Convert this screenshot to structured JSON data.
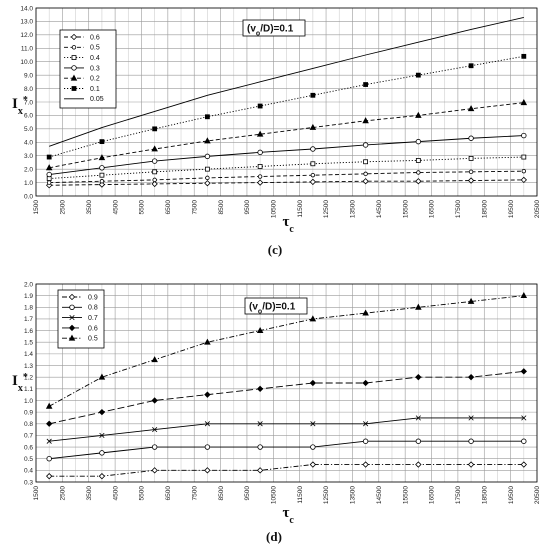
{
  "chart_data": [
    {
      "type": "line",
      "panel": "(c)",
      "annotation": "(v_o/D)=0.1",
      "ylabel": "I_x*",
      "xlabel": "τ_c",
      "xlim": [
        1500,
        20500
      ],
      "ylim": [
        0.0,
        14.0
      ],
      "xticks": [
        1500,
        2500,
        3500,
        4500,
        5500,
        6500,
        7500,
        8500,
        9500,
        10500,
        11500,
        12500,
        13500,
        14500,
        15500,
        16500,
        17500,
        18500,
        19500,
        20500
      ],
      "yticks": [
        0.0,
        1.0,
        2.0,
        3.0,
        4.0,
        5.0,
        6.0,
        7.0,
        8.0,
        9.0,
        10.0,
        11.0,
        12.0,
        13.0,
        14.0
      ],
      "ytick_decimals": 1,
      "grid": true,
      "legend_position": "top-left",
      "x": [
        2000,
        4000,
        6000,
        8000,
        10000,
        12000,
        14000,
        16000,
        18000,
        20000
      ],
      "series": [
        {
          "name": "0.6",
          "marker": "diamond-open",
          "dash": "dash",
          "values": [
            0.8,
            0.85,
            0.9,
            0.95,
            1.0,
            1.05,
            1.1,
            1.1,
            1.15,
            1.2
          ]
        },
        {
          "name": "0.5",
          "marker": "circle-open-small",
          "dash": "dash",
          "values": [
            1.0,
            1.1,
            1.2,
            1.35,
            1.45,
            1.55,
            1.65,
            1.75,
            1.8,
            1.85
          ]
        },
        {
          "name": "0.4",
          "marker": "square-open",
          "dash": "dot",
          "values": [
            1.3,
            1.55,
            1.8,
            2.0,
            2.2,
            2.4,
            2.55,
            2.65,
            2.8,
            2.9
          ]
        },
        {
          "name": "0.3",
          "marker": "circle-open",
          "dash": "solid",
          "values": [
            1.6,
            2.1,
            2.6,
            2.95,
            3.25,
            3.5,
            3.8,
            4.05,
            4.3,
            4.5
          ]
        },
        {
          "name": "0.2",
          "marker": "triangle-filled",
          "dash": "dash",
          "values": [
            2.1,
            2.85,
            3.5,
            4.1,
            4.6,
            5.1,
            5.6,
            6.0,
            6.5,
            6.95
          ]
        },
        {
          "name": "0.1",
          "marker": "square-filled",
          "dash": "dot",
          "values": [
            2.9,
            4.05,
            5.0,
            5.9,
            6.7,
            7.5,
            8.3,
            9.0,
            9.7,
            10.4
          ]
        },
        {
          "name": "0.05",
          "marker": "none",
          "dash": "solid",
          "values": [
            3.7,
            5.1,
            6.3,
            7.5,
            8.5,
            9.5,
            10.5,
            11.45,
            12.4,
            13.3
          ]
        }
      ]
    },
    {
      "type": "line",
      "panel": "(d)",
      "annotation": "(v_o/D)=0.1",
      "ylabel": "I_x*",
      "xlabel": "τ_c",
      "xlim": [
        1500,
        20500
      ],
      "ylim": [
        0.3,
        2.0
      ],
      "xticks": [
        1500,
        2500,
        3500,
        4500,
        5500,
        6500,
        7500,
        8500,
        9500,
        10500,
        11500,
        12500,
        13500,
        14500,
        15500,
        16500,
        17500,
        18500,
        19500,
        20500
      ],
      "yticks": [
        0.3,
        0.4,
        0.5,
        0.6,
        0.7,
        0.8,
        0.9,
        1.0,
        1.1,
        1.2,
        1.3,
        1.4,
        1.5,
        1.6,
        1.7,
        1.8,
        1.9,
        2.0
      ],
      "ytick_decimals": 1,
      "grid": true,
      "legend_position": "top-left",
      "x": [
        2000,
        4000,
        6000,
        8000,
        10000,
        12000,
        14000,
        16000,
        18000,
        20000
      ],
      "series": [
        {
          "name": "0.9",
          "marker": "diamond-open",
          "dash": "dashdot",
          "values": [
            0.35,
            0.35,
            0.4,
            0.4,
            0.4,
            0.45,
            0.45,
            0.45,
            0.45,
            0.45
          ]
        },
        {
          "name": "0.8",
          "marker": "circle-open",
          "dash": "solid",
          "values": [
            0.5,
            0.55,
            0.6,
            0.6,
            0.6,
            0.6,
            0.65,
            0.65,
            0.65,
            0.65
          ]
        },
        {
          "name": "0.7",
          "marker": "cross",
          "dash": "solid",
          "values": [
            0.65,
            0.7,
            0.75,
            0.8,
            0.8,
            0.8,
            0.8,
            0.85,
            0.85,
            0.85
          ]
        },
        {
          "name": "0.6",
          "marker": "diamond-filled",
          "dash": "longdash",
          "values": [
            0.8,
            0.9,
            1.0,
            1.05,
            1.1,
            1.15,
            1.15,
            1.2,
            1.2,
            1.25
          ]
        },
        {
          "name": "0.5",
          "marker": "triangle-filled",
          "dash": "dashdot",
          "values": [
            0.95,
            1.2,
            1.35,
            1.5,
            1.6,
            1.7,
            1.75,
            1.8,
            1.85,
            1.9
          ]
        }
      ]
    }
  ]
}
